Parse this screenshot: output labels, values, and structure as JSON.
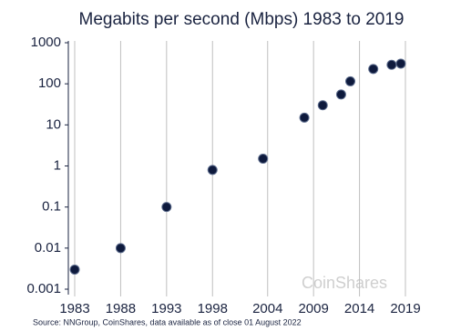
{
  "chart_data": {
    "type": "scatter",
    "title": "Megabits per second (Mbps) 1983 to 2019",
    "source": "Source: NNGroup, CoinShares, data available as of close 01 August 2022",
    "watermark": "CoinShares",
    "x": [
      1983,
      1988,
      1993,
      1998,
      2003.5,
      2008,
      2010,
      2012,
      2013,
      2015.5,
      2017.5,
      2018.5
    ],
    "values": [
      0.003,
      0.01,
      0.1,
      0.8,
      1.5,
      15,
      30,
      55,
      115,
      230,
      290,
      310
    ],
    "color": "#0e1a3d",
    "xlim": [
      1983,
      2019
    ],
    "xticks": [
      1983,
      1988,
      1993,
      1998,
      2004,
      2009,
      2014,
      2019
    ],
    "ylim": [
      0.001,
      1000
    ],
    "yticks": [
      0.001,
      0.01,
      0.1,
      1,
      10,
      100,
      1000
    ],
    "log_y": true,
    "grid": "x"
  }
}
